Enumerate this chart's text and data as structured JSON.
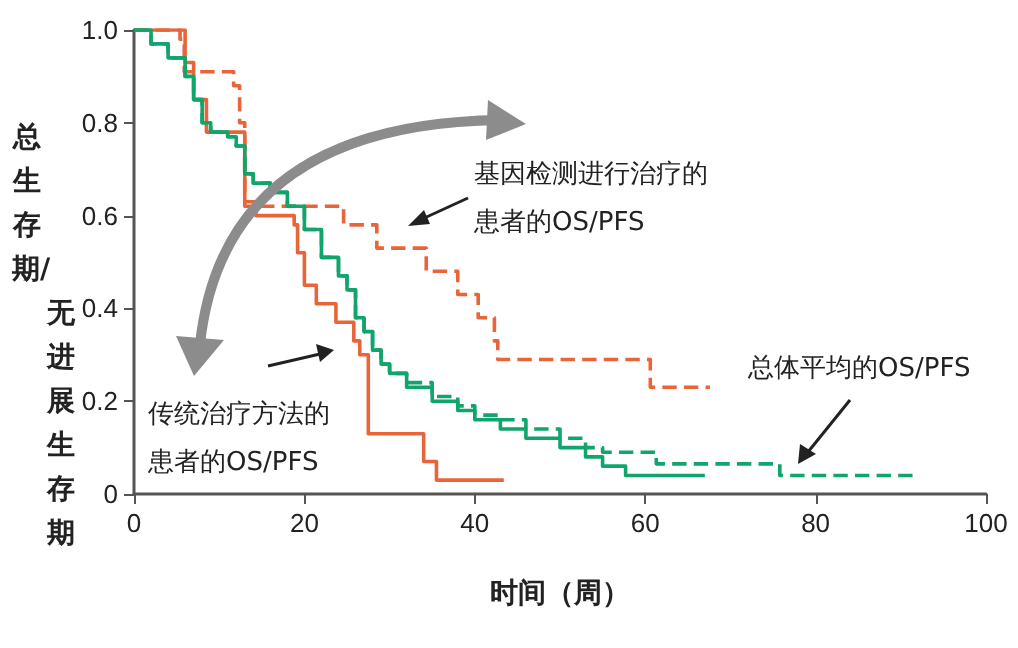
{
  "chart_data": {
    "type": "step",
    "xlabel": "时间（周）",
    "ylabel": "总生存期/无进展生存期",
    "annotations": [
      "基因检测进行治疗的患者的OS/PFS",
      "传统治疗方法的患者的OS/PFS",
      "总体平均的OS/PFS"
    ],
    "xlim": [
      0,
      100
    ],
    "xticks": [
      0,
      20,
      40,
      60,
      80,
      100
    ],
    "ylim": [
      0,
      1
    ],
    "yticks": [
      0,
      0.2,
      0.4,
      0.6,
      0.8,
      {
        "value": 1,
        "label": "1.0"
      }
    ],
    "marker": "none",
    "series": [
      {
        "color": "#e8653a",
        "line_style": "dashed",
        "x": [
          0,
          5.4,
          5.9,
          11.7,
          12.4,
          13,
          24.6,
          28.5,
          34.3,
          38,
          40.4,
          42.3,
          42.7,
          60.6,
          67.6
        ],
        "values": [
          1,
          0.98,
          0.91,
          0.88,
          0.8,
          0.62,
          0.58,
          0.53,
          0.48,
          0.43,
          0.38,
          0.33,
          0.29,
          0.23,
          0.23
        ]
      },
      {
        "color": "#e8653a",
        "line_style": "solid",
        "x": [
          0,
          6,
          7,
          8.5,
          13,
          14.3,
          18.8,
          19.2,
          20,
          21.4,
          23.7,
          25.8,
          26.5,
          27.5,
          34,
          35.5,
          43.4
        ],
        "values": [
          1,
          0.93,
          0.85,
          0.78,
          0.63,
          0.6,
          0.58,
          0.52,
          0.45,
          0.41,
          0.37,
          0.33,
          0.3,
          0.13,
          0.07,
          0.03,
          0.03
        ]
      },
      {
        "color": "#12a56b",
        "line_style": "dashed",
        "x": [
          0,
          2,
          4,
          6,
          7,
          8,
          9,
          11,
          12,
          13,
          14,
          16,
          18,
          20,
          22,
          24,
          25,
          26,
          27,
          28,
          29,
          30,
          32,
          35,
          38,
          40,
          43,
          46,
          50,
          53,
          55,
          61.3,
          75.8,
          91.5
        ],
        "values": [
          1,
          0.97,
          0.94,
          0.9,
          0.85,
          0.8,
          0.78,
          0.77,
          0.75,
          0.69,
          0.67,
          0.65,
          0.62,
          0.57,
          0.51,
          0.47,
          0.44,
          0.38,
          0.35,
          0.31,
          0.28,
          0.26,
          0.24,
          0.21,
          0.19,
          0.17,
          0.16,
          0.14,
          0.12,
          0.1,
          0.09,
          0.065,
          0.04,
          0.04
        ]
      },
      {
        "color": "#12a56b",
        "line_style": "solid",
        "x": [
          0,
          2,
          4,
          6,
          7,
          8,
          9,
          11,
          12,
          13,
          14,
          16,
          18,
          20,
          22,
          24,
          25,
          26,
          27,
          28,
          29,
          30,
          32,
          35,
          38,
          40,
          43,
          46,
          50,
          53,
          55,
          57.7,
          67
        ],
        "values": [
          1,
          0.97,
          0.94,
          0.9,
          0.85,
          0.8,
          0.78,
          0.77,
          0.75,
          0.69,
          0.67,
          0.65,
          0.62,
          0.57,
          0.51,
          0.47,
          0.44,
          0.38,
          0.35,
          0.31,
          0.28,
          0.26,
          0.23,
          0.2,
          0.18,
          0.16,
          0.14,
          0.12,
          0.1,
          0.08,
          0.06,
          0.04,
          0.04
        ]
      }
    ]
  }
}
